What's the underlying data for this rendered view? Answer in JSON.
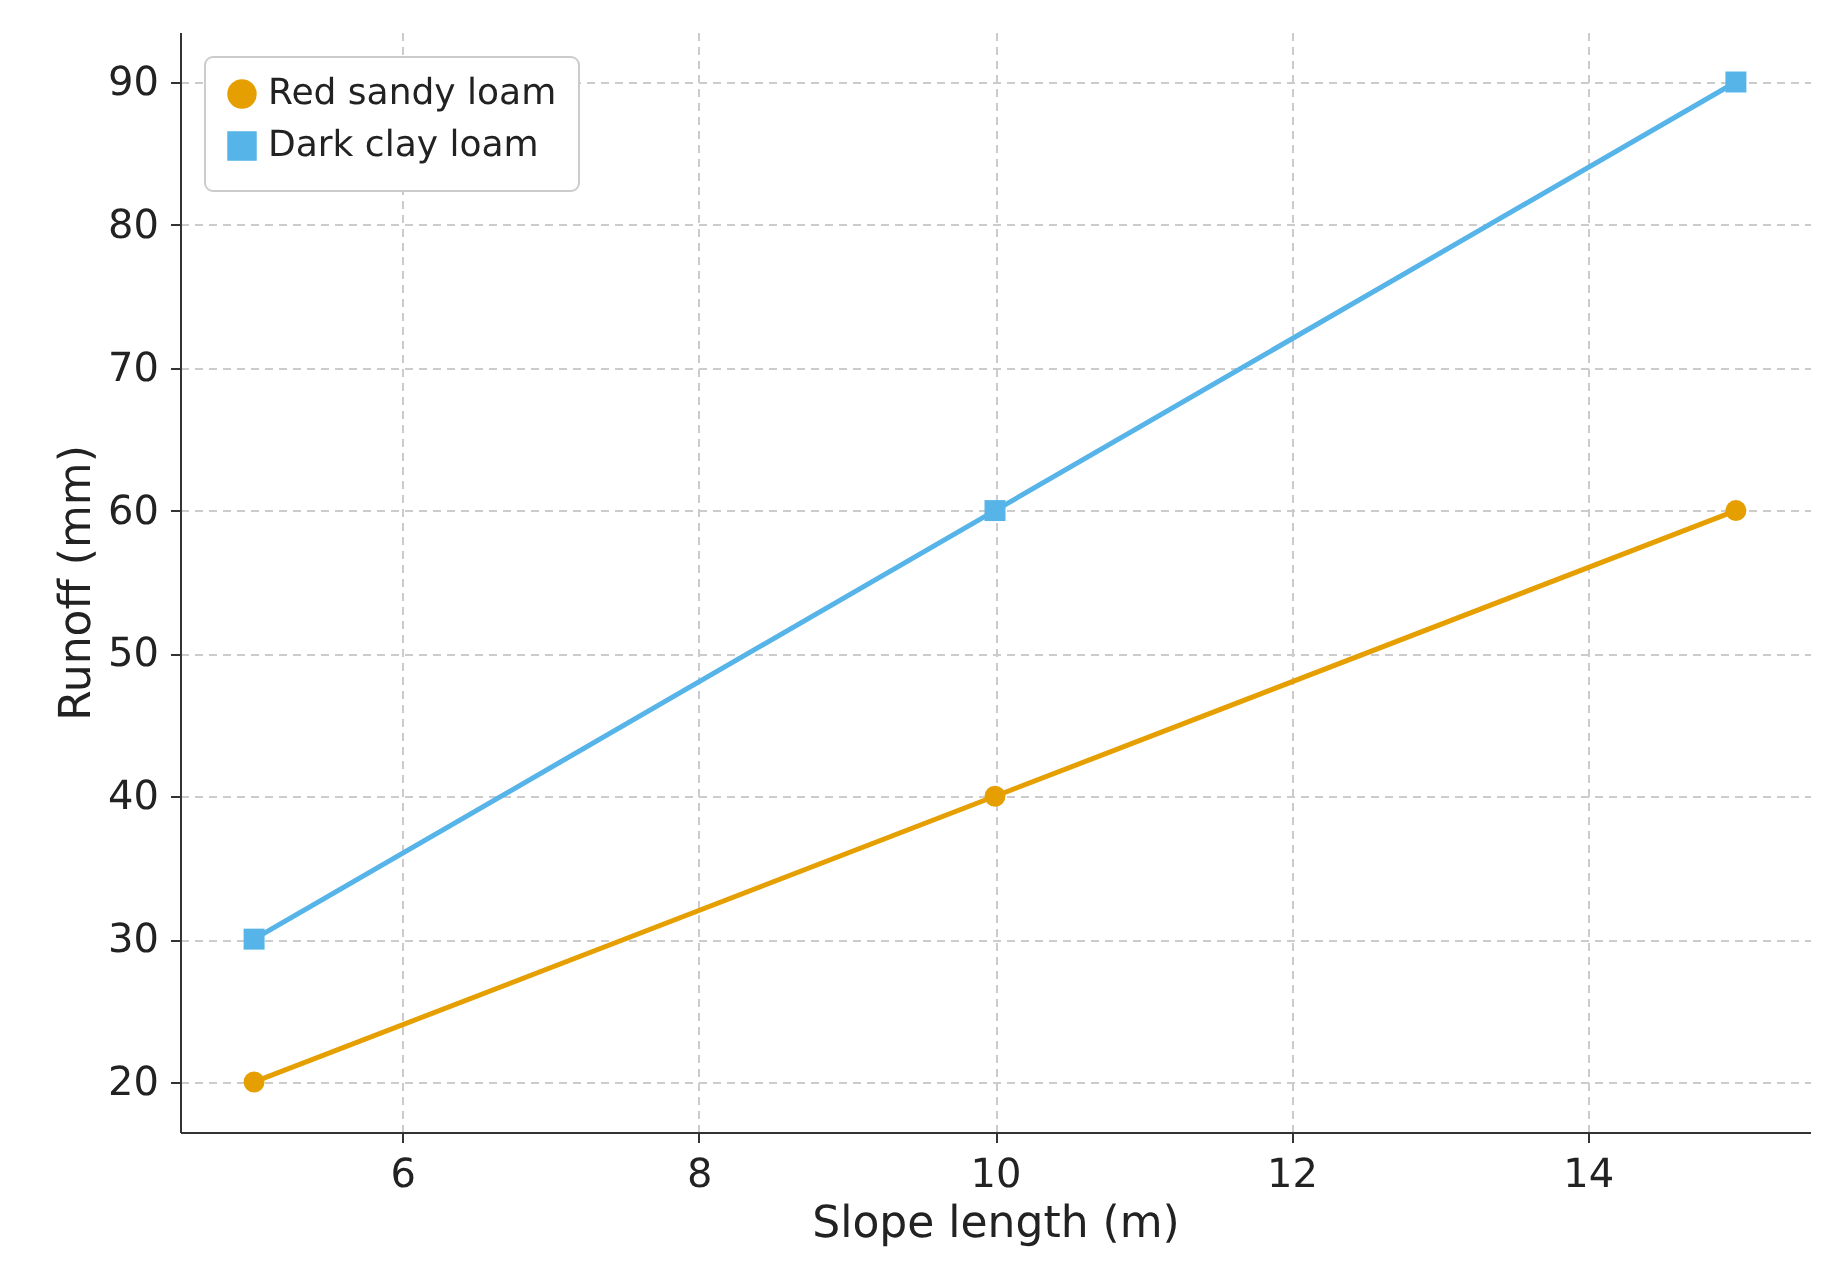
{
  "chart_data": {
    "type": "line",
    "xlabel": "Slope length (m)",
    "ylabel": "Runoff (mm)",
    "x": [
      5,
      10,
      15
    ],
    "series": [
      {
        "name": "Red sandy loam",
        "color": "#e69f00",
        "marker": "circle",
        "values": [
          20,
          40,
          60
        ]
      },
      {
        "name": "Dark clay loam",
        "color": "#56b4e9",
        "marker": "square",
        "values": [
          30,
          60,
          90
        ]
      }
    ],
    "xlim": [
      4.5,
      15.5
    ],
    "xticks": [
      6,
      8,
      10,
      12,
      14
    ],
    "ylim": [
      16.5,
      93.5
    ],
    "yticks": [
      20,
      30,
      40,
      50,
      60,
      70,
      80,
      90
    ],
    "grid": true,
    "legend": "top left",
    "line_style": "solid"
  }
}
